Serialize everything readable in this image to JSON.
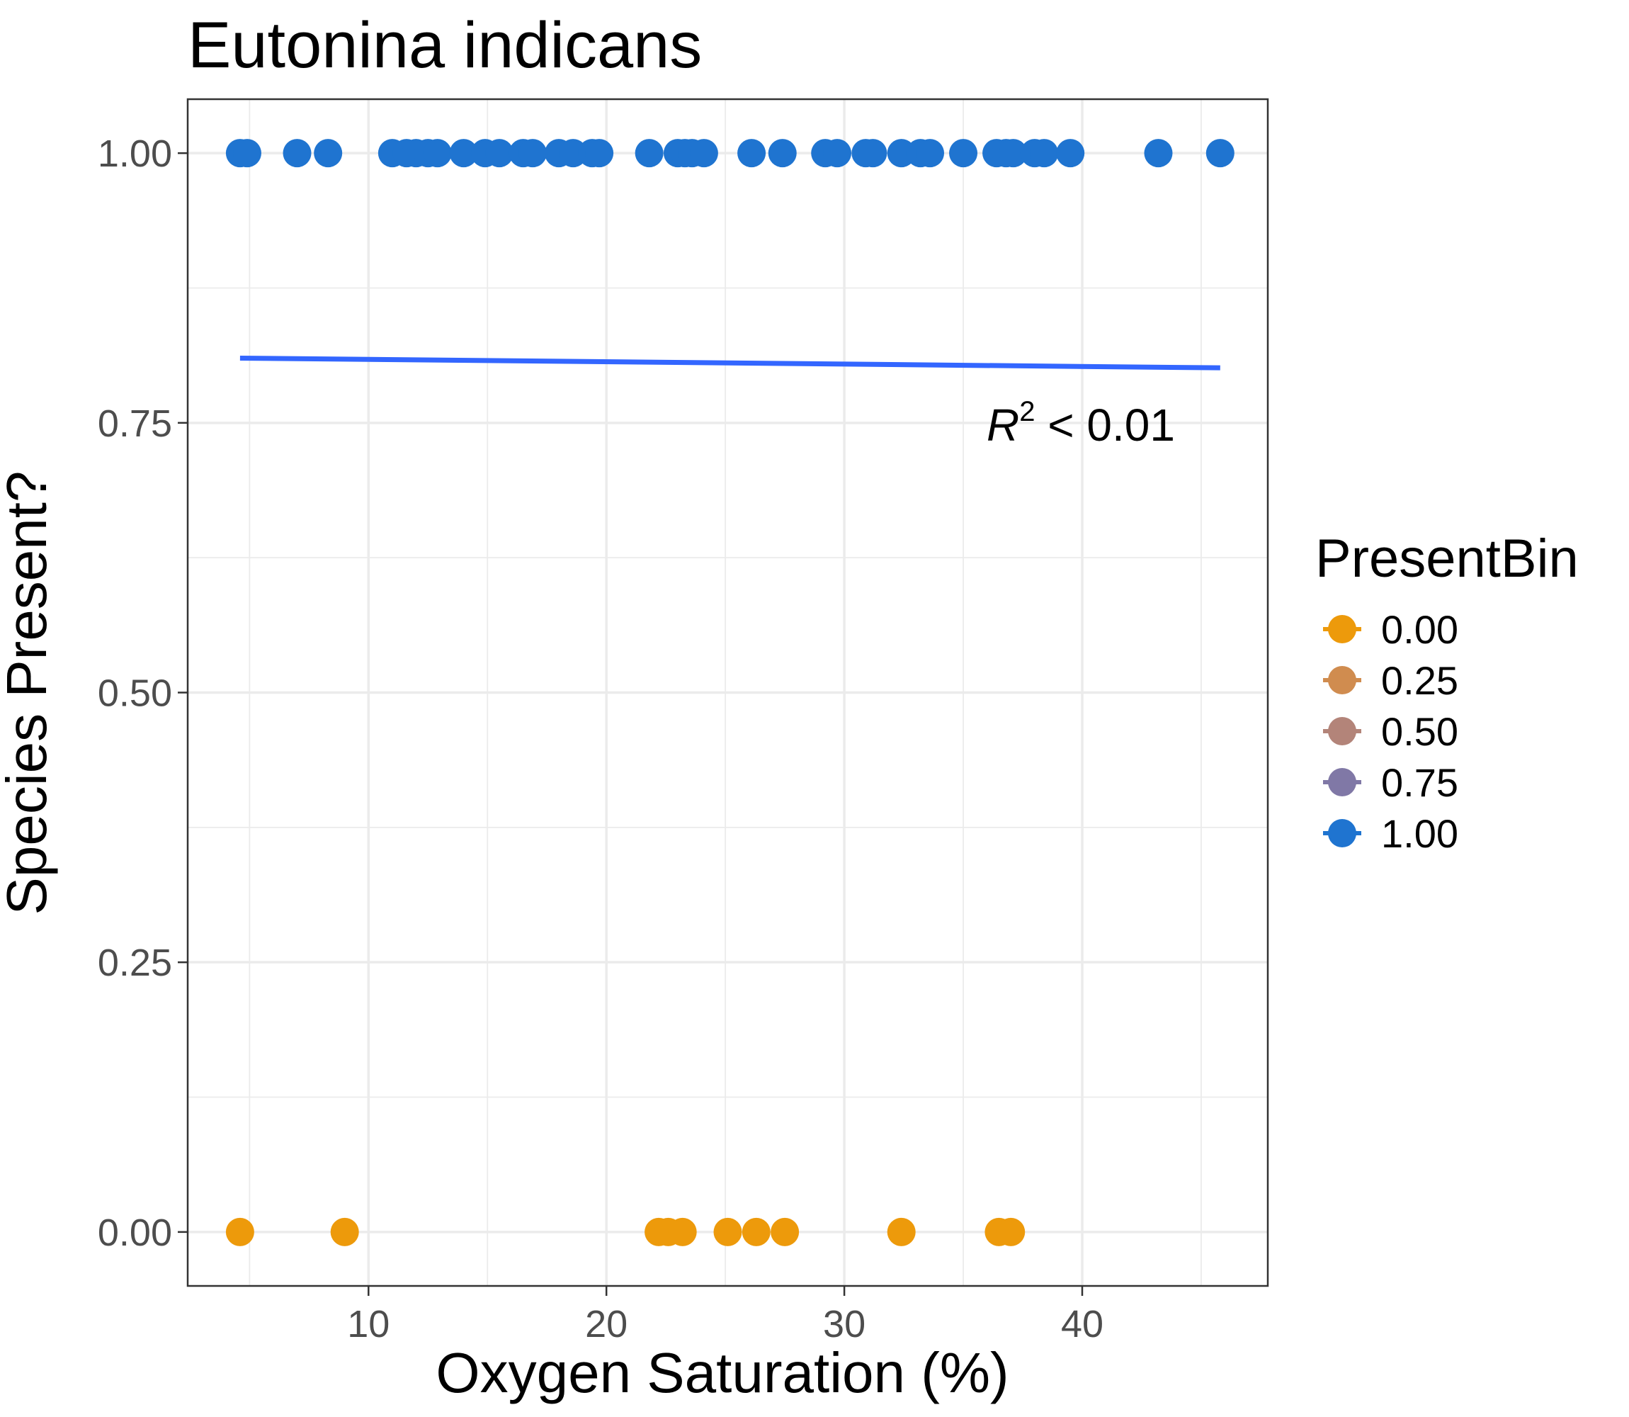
{
  "chart_data": {
    "type": "scatter",
    "title": "Eutonina indicans",
    "xlabel": "Oxygen Saturation (%)",
    "ylabel": "Species Present?",
    "xlim": [
      2.4,
      47.8
    ],
    "ylim": [
      -0.05,
      1.05
    ],
    "x_ticks": [
      10,
      20,
      30,
      40
    ],
    "x_tick_labels": [
      "10",
      "20",
      "30",
      "40"
    ],
    "y_ticks": [
      0,
      0.25,
      0.5,
      0.75,
      1.0
    ],
    "y_tick_labels": [
      "0.00",
      "0.25",
      "0.50",
      "0.75",
      "1.00"
    ],
    "grid": true,
    "legend": {
      "title": "PresentBin",
      "position": "right",
      "entries": [
        {
          "label": "0.00",
          "color": "#ED9A0B"
        },
        {
          "label": "0.25",
          "color": "#D08C4F"
        },
        {
          "label": "0.50",
          "color": "#B38479"
        },
        {
          "label": "0.75",
          "color": "#8078A6"
        },
        {
          "label": "1.00",
          "color": "#1F74D0"
        }
      ]
    },
    "points_present": {
      "y": 1.0,
      "color": "#1F74D0",
      "x": [
        4.6,
        4.9,
        7.0,
        8.3,
        11.0,
        11.6,
        12.0,
        12.5,
        12.9,
        14.0,
        14.9,
        15.5,
        16.5,
        16.9,
        18.0,
        18.6,
        19.4,
        19.7,
        21.8,
        23.0,
        23.3,
        23.6,
        24.1,
        26.1,
        27.4,
        29.2,
        29.7,
        30.9,
        31.2,
        32.4,
        33.2,
        33.6,
        35.0,
        36.4,
        36.8,
        37.1,
        38.0,
        38.4,
        39.5,
        43.2,
        45.8
      ]
    },
    "points_absent": {
      "y": 0.0,
      "color": "#ED9A0B",
      "x": [
        4.6,
        9.0,
        22.2,
        22.6,
        23.2,
        25.1,
        26.3,
        27.5,
        32.4,
        36.5,
        37.0
      ]
    },
    "fit_line": {
      "color": "#3366FF",
      "x": [
        4.6,
        45.8
      ],
      "y": [
        0.81,
        0.801
      ]
    },
    "annotation": {
      "base": "R",
      "superscript": "2",
      "rest": " < 0.01",
      "x": 43.9,
      "y": 0.75
    }
  }
}
